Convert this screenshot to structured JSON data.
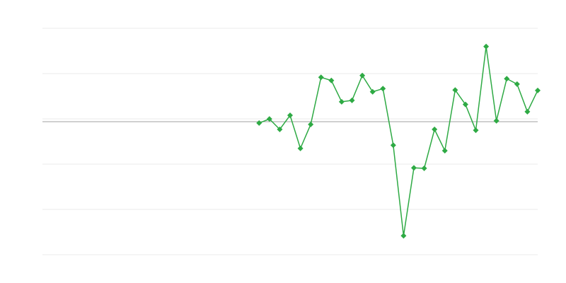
{
  "chart_data": {
    "type": "line",
    "title": "",
    "xlabel": "",
    "ylabel": "",
    "x_count": 49,
    "x_start_index": 21,
    "values": [
      -0.03,
      0.06,
      -0.17,
      0.14,
      -0.59,
      -0.06,
      0.98,
      0.91,
      0.44,
      0.47,
      1.02,
      0.66,
      0.73,
      -0.52,
      -2.52,
      -1.02,
      -1.03,
      -0.17,
      -0.64,
      0.7,
      0.38,
      -0.19,
      1.66,
      0.02,
      0.95,
      0.83,
      0.22,
      0.69
    ],
    "ylim": [
      -2.9375,
      2.0625
    ],
    "gridlines": [
      2.0625,
      1.0625,
      0.0625,
      -0.9375,
      -1.9375,
      -2.9375
    ],
    "zero_line": 0,
    "grid": true,
    "legend": "none",
    "marker": "diamond",
    "colors": {
      "series": "#2eaa44",
      "grid": "#ebebeb",
      "zero_line": "#a0a0a0"
    }
  }
}
